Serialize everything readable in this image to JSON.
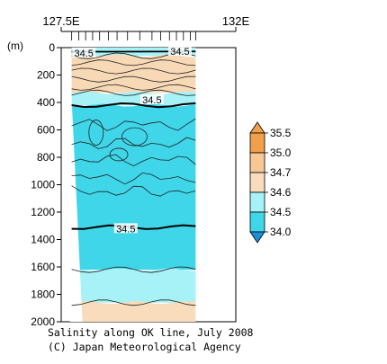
{
  "chart_data": {
    "type": "heatmap",
    "title": "Salinity along OK line, July 2008",
    "credit": "(C) Japan Meteorological Agency",
    "y_unit_label": "(m)",
    "x_ticks": [
      "127.5E",
      "132E"
    ],
    "y_ticks": [
      0,
      200,
      400,
      600,
      800,
      1000,
      1200,
      1400,
      1600,
      1800,
      2000
    ],
    "ylim": [
      0,
      2000
    ],
    "y_reversed": true,
    "section_x_fraction": [
      0.06,
      0.77
    ],
    "legend": {
      "levels": [
        "35.5",
        "35.0",
        "34.7",
        "34.6",
        "34.5",
        "34.0"
      ],
      "colors": [
        "#f0a04a",
        "#f7c896",
        "#f8dcbc",
        "#a6f2f6",
        "#3ed6e8",
        "#1c8fd8"
      ]
    },
    "layers": [
      {
        "range": "34.7-35.0",
        "from_m": 0,
        "to_m": 30,
        "color": "#f8dcbc"
      },
      {
        "range": "34.6-34.7",
        "from_m": 0,
        "to_m": 60,
        "color": "#a6f2f6"
      },
      {
        "range": "34.7-35.0",
        "from_m": 60,
        "to_m": 330,
        "color": "#f8d9b6"
      },
      {
        "range": "34.6-34.7",
        "from_m": 330,
        "to_m": 420,
        "color": "#a6f2f6"
      },
      {
        "range": "34.5-34.6",
        "from_m": 420,
        "to_m": 1620,
        "color": "#3ed6e8"
      },
      {
        "range": "34.6-34.7",
        "from_m": 1620,
        "to_m": 1860,
        "color": "#a6f2f6"
      },
      {
        "range": "34.7-35.0",
        "from_m": 1860,
        "to_m": 2000,
        "color": "#f8dcbc"
      }
    ],
    "contour_labels": [
      {
        "text": "34.5",
        "x_frac": 0.13,
        "depth_m": 40
      },
      {
        "text": "34.5",
        "x_frac": 0.68,
        "depth_m": 25
      },
      {
        "text": "34.5",
        "x_frac": 0.52,
        "depth_m": 380
      },
      {
        "text": "34.5",
        "x_frac": 0.37,
        "depth_m": 1320
      }
    ],
    "highlight_contours": [
      {
        "value": 34.5,
        "depth_m": 420
      },
      {
        "value": 34.5,
        "depth_m": 1310
      }
    ]
  }
}
